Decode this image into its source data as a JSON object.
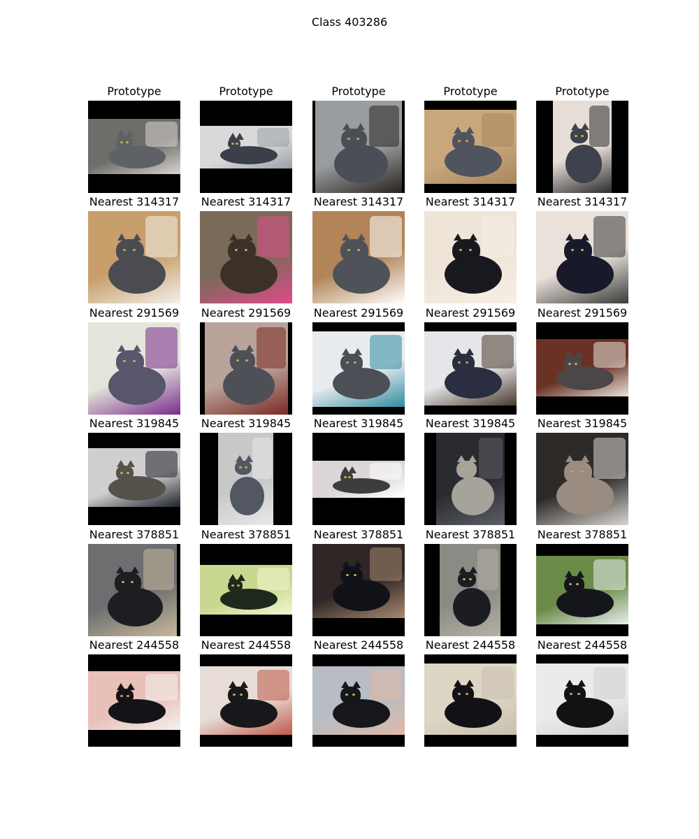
{
  "title": "Class 403286",
  "rows": [
    {
      "label": "Prototype",
      "cells": [
        {
          "bg": "#6f6d6a",
          "cat": "#5e6166",
          "band": [
            0.2,
            0.8
          ],
          "orient": "h",
          "deco": "#d8d4cf"
        },
        {
          "bg": "#d9d9d9",
          "cat": "#3a3f4a",
          "band": [
            0.27,
            0.73
          ],
          "orient": "h",
          "deco": "#9aa0a8"
        },
        {
          "bg": "#9a9da0",
          "cat": "#4a4e56",
          "band": [
            0.03,
            0.97
          ],
          "orient": "v",
          "deco": "#2a2220"
        },
        {
          "bg": "#c8a77c",
          "cat": "#4f545e",
          "band": [
            0.1,
            0.9
          ],
          "orient": "h",
          "deco": "#a8875e"
        },
        {
          "bg": "#e6ddd7",
          "cat": "#3d424c",
          "band": [
            0.18,
            0.82
          ],
          "orient": "v",
          "deco": "#2b2b2b"
        }
      ]
    },
    {
      "label": "Nearest 314317",
      "cells": [
        {
          "bg": "#c89e6a",
          "cat": "#4a4c52",
          "band": [
            0,
            1
          ],
          "orient": "h",
          "deco": "#f1f0ea"
        },
        {
          "bg": "#7a6a58",
          "cat": "#3b3128",
          "band": [
            0,
            1
          ],
          "orient": "h",
          "deco": "#e04a8a"
        },
        {
          "bg": "#b18558",
          "cat": "#4f5258",
          "band": [
            0,
            1
          ],
          "orient": "h",
          "deco": "#ffffff"
        },
        {
          "bg": "#efe4d8",
          "cat": "#18181f",
          "band": [
            0,
            1
          ],
          "orient": "h",
          "deco": "#f6efe6"
        },
        {
          "bg": "#e9e1da",
          "cat": "#181a2a",
          "band": [
            0,
            1
          ],
          "orient": "h",
          "deco": "#3a3a3a"
        }
      ]
    },
    {
      "label": "Nearest 291569",
      "cells": [
        {
          "bg": "#e4e6dc",
          "cat": "#57566c",
          "band": [
            0,
            1
          ],
          "orient": "h",
          "deco": "#7a2c8c"
        },
        {
          "bg": "#b9a39a",
          "cat": "#4d5056",
          "band": [
            0.05,
            0.95
          ],
          "orient": "v",
          "deco": "#7a2a24"
        },
        {
          "bg": "#e9ecef",
          "cat": "#4c4f55",
          "band": [
            0.1,
            0.92
          ],
          "orient": "h",
          "deco": "#2f8ca0"
        },
        {
          "bg": "#e6e6ea",
          "cat": "#2a2e40",
          "band": [
            0.1,
            0.9
          ],
          "orient": "h",
          "deco": "#4a3a2c"
        },
        {
          "bg": "#6a3224",
          "cat": "#4b4648",
          "band": [
            0.18,
            0.8
          ],
          "orient": "h",
          "deco": "#e8e3dc"
        }
      ]
    },
    {
      "label": "Nearest 319845",
      "cells": [
        {
          "bg": "#cfcfcf",
          "cat": "#55524c",
          "band": [
            0.17,
            0.81
          ],
          "orient": "h",
          "deco": "#1f232c"
        },
        {
          "bg": "#c8c8c8",
          "cat": "#525762",
          "band": [
            0.2,
            0.8
          ],
          "orient": "v",
          "deco": "#e8e8e8"
        },
        {
          "bg": "#dcd6d6",
          "cat": "#3d3c3e",
          "band": [
            0.3,
            0.7
          ],
          "orient": "h",
          "deco": "#ffffff"
        },
        {
          "bg": "#2a2b2f",
          "cat": "#a6a39b",
          "band": [
            0.13,
            0.87
          ],
          "orient": "v",
          "deco": "#5b5e66"
        },
        {
          "bg": "#2d2a28",
          "cat": "#9a8c80",
          "band": [
            0,
            1
          ],
          "orient": "h",
          "deco": "#d9d6d0"
        }
      ]
    },
    {
      "label": "Nearest 378851",
      "cells": [
        {
          "bg": "#6c6e70",
          "cat": "#1d1e22",
          "band": [
            0,
            0.96
          ],
          "orient": "v",
          "deco": "#c8b89a"
        },
        {
          "bg": "#c9d890",
          "cat": "#1e2a1c",
          "band": [
            0.23,
            0.77
          ],
          "orient": "h",
          "deco": "#f2f5d0"
        },
        {
          "bg": "#302626",
          "cat": "#111218",
          "band": [
            0,
            0.8
          ],
          "orient": "h",
          "deco": "#a88a6e"
        },
        {
          "bg": "#8c8a84",
          "cat": "#1c1d22",
          "band": [
            0.17,
            0.83
          ],
          "orient": "v",
          "deco": "#b4b0a6"
        },
        {
          "bg": "#6a8c48",
          "cat": "#15161c",
          "band": [
            0.13,
            0.87
          ],
          "orient": "h",
          "deco": "#e8eef0"
        }
      ]
    },
    {
      "label": "Nearest 244558",
      "cells": [
        {
          "bg": "#e8c0b8",
          "cat": "#141418",
          "band": [
            0.18,
            0.82
          ],
          "orient": "h",
          "deco": "#f3f1ee"
        },
        {
          "bg": "#e7dcd6",
          "cat": "#17181c",
          "band": [
            0.13,
            0.87
          ],
          "orient": "h",
          "deco": "#c05a4a"
        },
        {
          "bg": "#b8bcc4",
          "cat": "#16171c",
          "band": [
            0.13,
            0.87
          ],
          "orient": "h",
          "deco": "#e0b8a6"
        },
        {
          "bg": "#ddd6c4",
          "cat": "#121216",
          "band": [
            0.1,
            0.87
          ],
          "orient": "h",
          "deco": "#c8c0ae"
        },
        {
          "bg": "#ebebeb",
          "cat": "#121215",
          "band": [
            0.1,
            0.87
          ],
          "orient": "h",
          "deco": "#d0d0d0"
        }
      ]
    }
  ]
}
